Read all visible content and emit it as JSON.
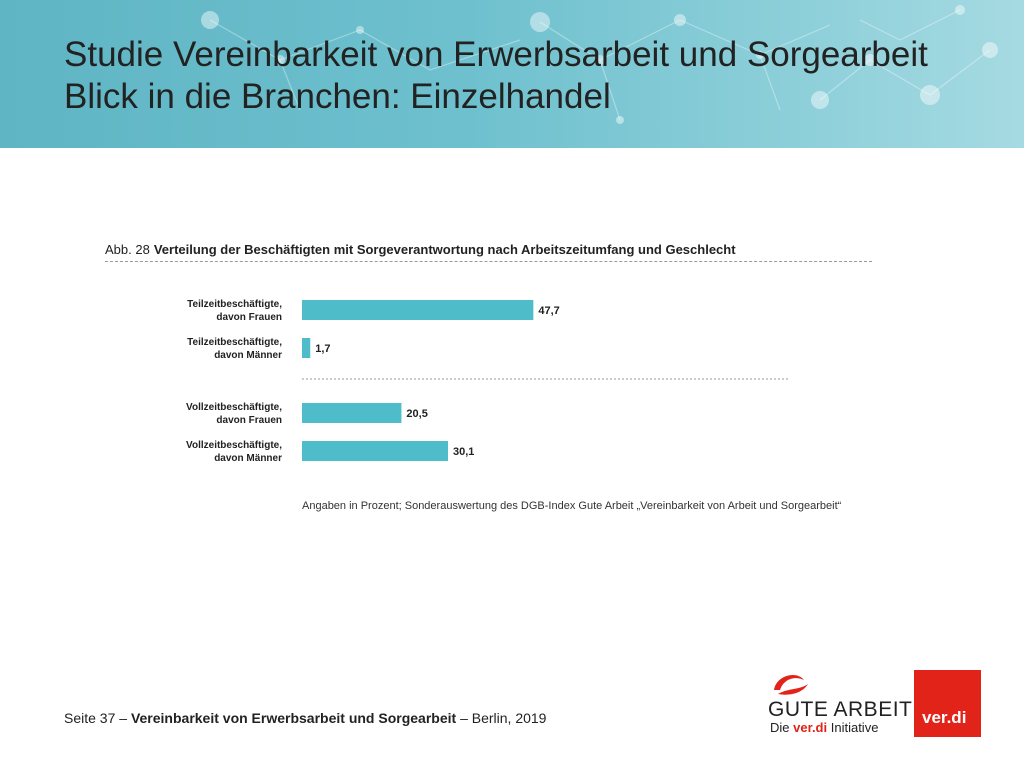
{
  "slide": {
    "title_line1": "Studie Vereinbarkeit von Erwerbsarbeit und Sorgearbeit",
    "title_line2": "Blick in die Branchen: Einzelhandel"
  },
  "figure": {
    "label": "Abb. 28",
    "title": "Verteilung der Beschäftigten mit Sorgeverantwortung nach Arbeitszeitumfang und Geschlecht",
    "source_note": "Angaben in Prozent; Sonderauswertung des DGB-Index Gute Arbeit „Vereinbarkeit von Arbeit und Sorgearbeit“"
  },
  "chart_data": {
    "type": "bar",
    "orientation": "horizontal",
    "categories": [
      [
        "Teilzeitbeschäftigte,",
        "davon Frauen"
      ],
      [
        "Teilzeitbeschäftigte,",
        "davon Männer"
      ],
      [
        "Vollzeitbeschäftigte,",
        "davon Frauen"
      ],
      [
        "Vollzeitbeschäftigte,",
        "davon Männer"
      ]
    ],
    "values": [
      47.7,
      1.7,
      20.5,
      30.1
    ],
    "value_labels": [
      "47,7",
      "1,7",
      "20,5",
      "30,1"
    ],
    "title": "Verteilung der Beschäftigten mit Sorgeverantwortung nach Arbeitszeitumfang und Geschlecht",
    "xlabel": "",
    "ylabel": "",
    "grid": false,
    "legend": "none",
    "bar_color": "#4fbcca"
  },
  "footer": {
    "page": "Seite 37",
    "sep1": "–",
    "topic": "Vereinbarkeit von Erwerbsarbeit und Sorgearbeit",
    "sep2": "–",
    "place_year": "Berlin, 2019"
  },
  "logos": {
    "gute_arbeit_name": "GUTE ARBEIT",
    "gute_arbeit_sub_die": "Die",
    "gute_arbeit_sub_verdi": "ver.di",
    "gute_arbeit_sub_initiative": "Initiative",
    "verdi": "ver.di"
  },
  "colors": {
    "header": "#6ec0ce",
    "bar": "#4fbcca",
    "verdi_red": "#e2231a"
  }
}
